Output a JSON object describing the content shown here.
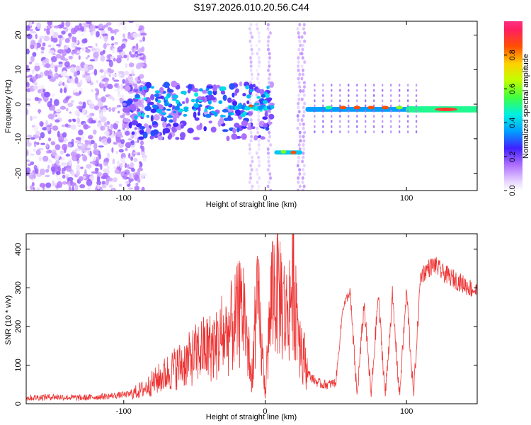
{
  "title": "S197.2026.010.20.56.C44",
  "chart_data": [
    {
      "type": "heatmap",
      "title": "S197.2026.010.20.56.C44",
      "xlabel": "Height of straight line (km)",
      "ylabel": "Frequency (Hz)",
      "xlim": [
        -169,
        150
      ],
      "ylim": [
        -25,
        24
      ],
      "xticks": [
        -100,
        0,
        100
      ],
      "yticks": [
        -20,
        -10,
        0,
        10,
        20
      ],
      "colorbar": {
        "label": "Normalized spectral amplitude",
        "range": [
          0,
          1
        ],
        "ticks": [
          0.0,
          0.2,
          0.4,
          0.6,
          0.8
        ],
        "tick_labels": [
          "0.0",
          "0.2",
          "0.4",
          "0.6",
          "0.8"
        ]
      },
      "features": [
        {
          "name": "noise-region",
          "x": [
            -169,
            -90
          ],
          "description": "scattered weak amplitude"
        },
        {
          "name": "carrier-left",
          "x": [
            -95,
            5
          ],
          "freq_hz": -1,
          "amplitude": 0.3
        },
        {
          "name": "carrier-shifted",
          "x": [
            8,
            25
          ],
          "freq_hz": -14,
          "amplitude": 0.7
        },
        {
          "name": "carrier-right",
          "x": [
            30,
            150
          ],
          "freq_hz": -1,
          "amplitude": 0.6
        },
        {
          "name": "peak-1",
          "x": 128,
          "freq_hz": -1.5,
          "amplitude": 0.95
        }
      ]
    },
    {
      "type": "line",
      "xlabel": "Height of straight line (km)",
      "ylabel": "SNR (10 * v/v)",
      "xlim": [
        -169,
        150
      ],
      "ylim": [
        0,
        440
      ],
      "xticks": [
        -100,
        0,
        100
      ],
      "yticks": [
        0,
        100,
        200,
        300,
        400
      ],
      "series": [
        {
          "name": "SNR",
          "color": "#ee3333",
          "x": [
            -169,
            -150,
            -130,
            -110,
            -95,
            -85,
            -75,
            -65,
            -55,
            -45,
            -35,
            -25,
            -15,
            -10,
            -5,
            0,
            5,
            10,
            15,
            20,
            25,
            30,
            35,
            40,
            45,
            50,
            55,
            60,
            65,
            70,
            75,
            80,
            85,
            90,
            95,
            100,
            105,
            110,
            115,
            120,
            125,
            130,
            135,
            140,
            145,
            150
          ],
          "y": [
            15,
            18,
            15,
            20,
            25,
            40,
            65,
            90,
            110,
            140,
            150,
            190,
            250,
            60,
            260,
            30,
            300,
            300,
            220,
            320,
            160,
            80,
            60,
            50,
            50,
            55,
            250,
            290,
            20,
            260,
            20,
            280,
            20,
            280,
            20,
            290,
            20,
            330,
            350,
            360,
            340,
            330,
            320,
            310,
            300,
            290
          ]
        }
      ]
    }
  ]
}
